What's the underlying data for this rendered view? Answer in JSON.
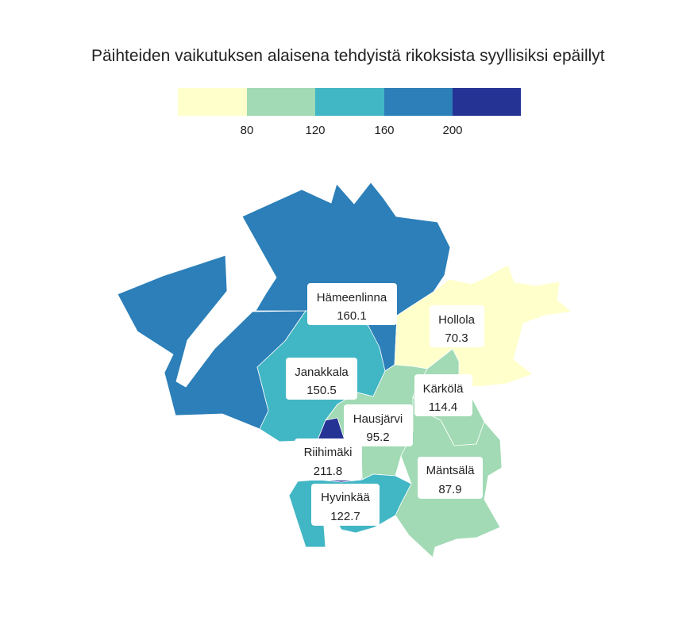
{
  "title": "Päihteiden vaikutuksen alaisena tehdyistä rikoksista syyllisiksi epäillyt",
  "legend": {
    "colors": [
      "#ffffcc",
      "#a1dab4",
      "#41b6c4",
      "#2c7fb8",
      "#253494"
    ],
    "ticks": [
      "80",
      "120",
      "160",
      "200"
    ]
  },
  "regions": [
    {
      "name": "Hämeenlinna",
      "value": "160.1",
      "color": "#2c7fb8"
    },
    {
      "name": "Hollola",
      "value": "70.3",
      "color": "#ffffcc"
    },
    {
      "name": "Janakkala",
      "value": "150.5",
      "color": "#41b6c4"
    },
    {
      "name": "Kärkölä",
      "value": "114.4",
      "color": "#a1dab4"
    },
    {
      "name": "Hausjärvi",
      "value": "95.2",
      "color": "#a1dab4"
    },
    {
      "name": "Riihimäki",
      "value": "211.8",
      "color": "#253494"
    },
    {
      "name": "Mäntsälä",
      "value": "87.9",
      "color": "#a1dab4"
    },
    {
      "name": "Hyvinkää",
      "value": "122.7",
      "color": "#41b6c4"
    }
  ]
}
